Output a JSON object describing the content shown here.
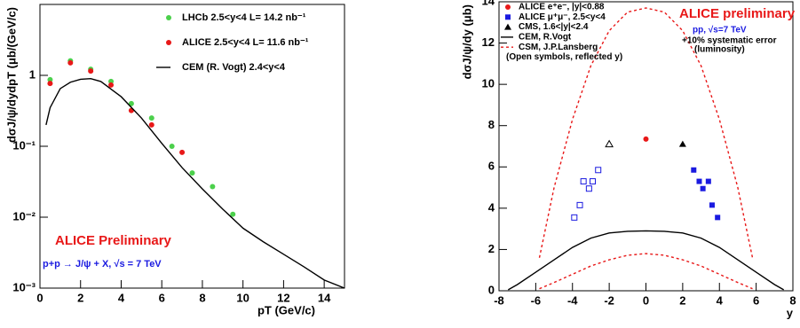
{
  "chart_data": [
    {
      "type": "line",
      "log_y": true,
      "y_label": "dσJ/ψ/dydpT (μb/(GeV/c)",
      "x_label": "pT (GeV/c)",
      "annotations": [
        "ALICE Preliminary",
        "p+p → J/ψ + X, √s = 7 TeV"
      ],
      "xlim": [
        0,
        15
      ],
      "xticks": [
        0,
        2,
        4,
        6,
        8,
        10,
        12,
        14
      ],
      "ylim": [
        0.001,
        10
      ],
      "yticks": [
        {
          "value": 0.001,
          "label": "10⁻³"
        },
        {
          "value": 0.01,
          "label": "10⁻²"
        },
        {
          "value": 0.1,
          "label": "10⁻¹"
        },
        1
      ],
      "series": [
        {
          "name": "LHCb 2.5<y<4 L= 14.2 nb⁻¹",
          "style": "points",
          "marker": "circle",
          "color": "#4cd04c",
          "x": [
            0.5,
            1.5,
            2.5,
            3.5,
            4.5,
            5.5,
            6.5,
            7.5,
            8.5,
            9.5
          ],
          "values": [
            0.87,
            1.6,
            1.22,
            0.82,
            0.4,
            0.25,
            0.1,
            0.042,
            0.027,
            0.011
          ]
        },
        {
          "name": "ALICE 2.5<y<4 L= 11.6 nb⁻¹",
          "style": "points",
          "marker": "circle",
          "color": "#e81818",
          "x": [
            0.5,
            1.5,
            2.5,
            3.5,
            4.5,
            5.5,
            7
          ],
          "values": [
            0.77,
            1.5,
            1.15,
            0.73,
            0.32,
            0.2,
            0.082
          ]
        },
        {
          "name": "CEM (R. Vogt) 2.4<y<4",
          "style": "line",
          "color": "#000000",
          "x": [
            0.3,
            0.5,
            1,
            1.5,
            2,
            2.5,
            3,
            4,
            5,
            6,
            7,
            8,
            9,
            10,
            11,
            12,
            13,
            14,
            15
          ],
          "values": [
            0.2,
            0.35,
            0.65,
            0.8,
            0.88,
            0.9,
            0.82,
            0.5,
            0.25,
            0.11,
            0.05,
            0.025,
            0.013,
            0.007,
            0.0045,
            0.003,
            0.002,
            0.0013,
            0.001
          ]
        }
      ]
    },
    {
      "type": "line",
      "log_y": false,
      "y_label": "dσJ/ψ/dy (μb)",
      "x_label": "y",
      "annotations": [
        "ALICE preliminary",
        "pp, √s=7 TeV",
        "+10% systematic error",
        "(luminosity)"
      ],
      "legend_note": "(Open symbols, reflected y)",
      "open_for_negative_x": true,
      "xlim": [
        -8,
        8
      ],
      "xticks": [
        -8,
        -6,
        -4,
        -2,
        0,
        2,
        4,
        6,
        8
      ],
      "ylim": [
        0,
        14
      ],
      "yticks": [
        0,
        2,
        4,
        6,
        8,
        10,
        12,
        14
      ],
      "series": [
        {
          "name": "ALICE e⁺e⁻, |y|<0.88",
          "style": "points",
          "marker": "circle",
          "color": "#e81818",
          "x": [
            0
          ],
          "values": [
            7.35
          ]
        },
        {
          "name": "ALICE μ⁺μ⁻, 2.5<y<4",
          "style": "points",
          "marker": "square",
          "color": "#1a1ae0",
          "x": [
            -3.9,
            -3.6,
            -3.4,
            -3.1,
            -2.9,
            -2.6,
            2.6,
            2.9,
            3.1,
            3.4,
            3.6,
            3.9
          ],
          "values": [
            3.55,
            4.15,
            5.3,
            4.95,
            5.3,
            5.85,
            5.85,
            5.3,
            4.95,
            5.3,
            4.15,
            3.55
          ]
        },
        {
          "name": "CMS, 1.6<|y|<2.4",
          "style": "points",
          "marker": "triangle",
          "color": "#000000",
          "x": [
            -2,
            2
          ],
          "values": [
            7.1,
            7.1
          ]
        },
        {
          "name": "CEM, R.Vogt",
          "style": "line",
          "color": "#000000",
          "x": [
            -7.5,
            -7,
            -6,
            -5,
            -4,
            -3,
            -2,
            -1,
            0,
            1,
            2,
            3,
            4,
            5,
            6,
            7,
            7.5
          ],
          "values": [
            0.05,
            0.3,
            0.9,
            1.5,
            2.1,
            2.55,
            2.8,
            2.88,
            2.9,
            2.88,
            2.8,
            2.55,
            2.1,
            1.5,
            0.9,
            0.3,
            0.05
          ]
        },
        {
          "name": "CSM, J.P.Lansberg",
          "style": "band",
          "color": "#e81818",
          "x": [
            -5.8,
            -5,
            -4,
            -3,
            -2,
            -1,
            0,
            1,
            2,
            3,
            4,
            5,
            5.8
          ],
          "upper": [
            1.6,
            5,
            8.3,
            10.9,
            12.6,
            13.5,
            13.7,
            13.5,
            12.6,
            10.9,
            8.3,
            5,
            1.6
          ],
          "lower": [
            0.1,
            0.4,
            0.8,
            1.2,
            1.5,
            1.72,
            1.8,
            1.72,
            1.5,
            1.2,
            0.8,
            0.4,
            0.1
          ]
        }
      ]
    }
  ]
}
